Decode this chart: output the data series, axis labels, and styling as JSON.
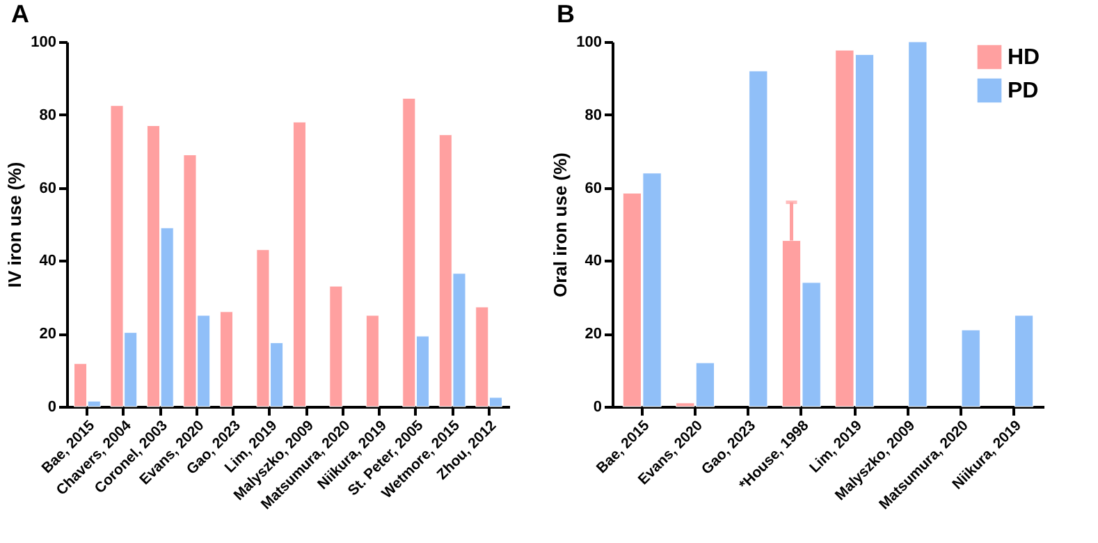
{
  "chart_data": [
    {
      "type": "bar",
      "title": "A",
      "ylabel": "IV iron use (%)",
      "categories": [
        "Bae, 2015",
        "Chavers, 2004",
        "Coronel, 2003",
        "Evans, 2020",
        "Gao, 2023",
        "Lim, 2019",
        "Malyszko, 2009",
        "Matsumura, 2020",
        "Niikura, 2019",
        "St. Peter, 2005",
        "Wetmore, 2015",
        "Zhou, 2012"
      ],
      "series": [
        {
          "color": "#ffa0a0",
          "values": [
            11.8,
            82.5,
            77,
            69,
            26,
            43,
            78,
            33,
            25,
            84.5,
            74.5,
            27.3
          ]
        },
        {
          "color": "#90bff8",
          "values": [
            1.5,
            20.3,
            49,
            25,
            null,
            17.5,
            null,
            null,
            null,
            19.3,
            36.5,
            2.5
          ]
        }
      ],
      "ylim": [
        0,
        100
      ],
      "yticks": [
        0,
        20,
        40,
        60,
        80,
        100
      ],
      "grid": false,
      "legend": false
    },
    {
      "type": "bar",
      "title": "B",
      "ylabel": "Oral iron use (%)",
      "categories": [
        "Bae, 2015",
        "Evans, 2020",
        "Gao, 2023",
        "*House, 1998",
        "Lim, 2019",
        "Malyszko, 2009",
        "Matsumura, 2020",
        "Niikura, 2019"
      ],
      "series": [
        {
          "name": "HD",
          "color": "#ffa0a0",
          "values": [
            58.5,
            1,
            null,
            45.5,
            97.7,
            null,
            null,
            null
          ],
          "errors": [
            null,
            null,
            null,
            [
              45.5,
              56
            ],
            null,
            null,
            null,
            null
          ]
        },
        {
          "name": "PD",
          "color": "#90bff8",
          "values": [
            64,
            12,
            92,
            34,
            96.5,
            100,
            21,
            25
          ]
        }
      ],
      "ylim": [
        0,
        100
      ],
      "yticks": [
        0,
        20,
        40,
        60,
        80,
        100
      ],
      "grid": false,
      "legend": "top right"
    }
  ]
}
